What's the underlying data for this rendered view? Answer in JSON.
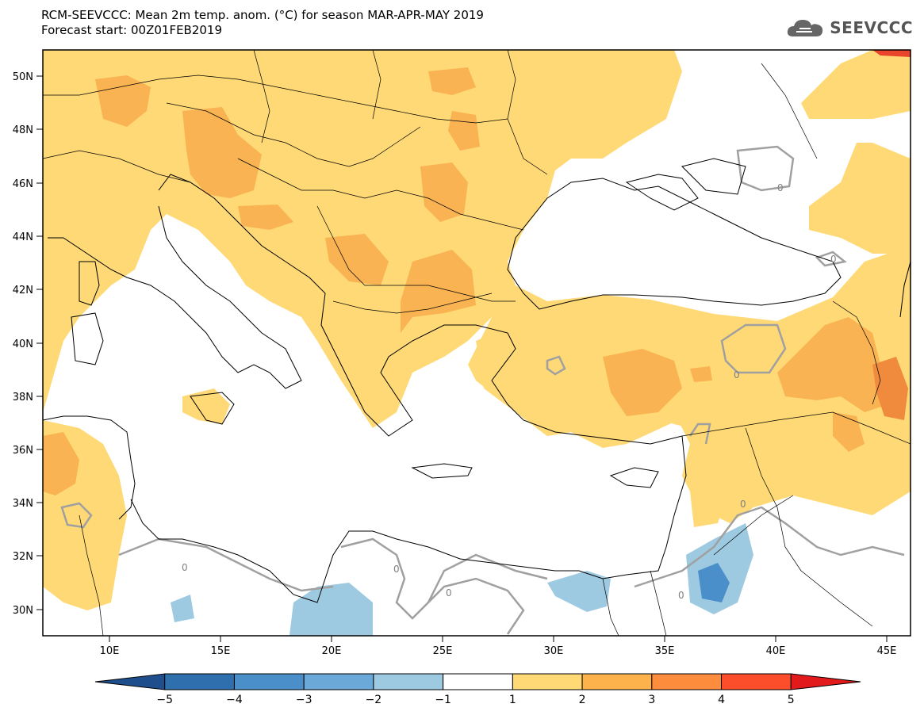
{
  "header": {
    "title_line1": "RCM-SEEVCCC: Mean 2m temp. anom. (°C) for season MAR-APR-MAY 2019",
    "title_line2": "Forecast start: 00Z01FEB2019",
    "logo_text": "SEEVCCC"
  },
  "map": {
    "lat_labels": [
      "50N",
      "48N",
      "46N",
      "44N",
      "42N",
      "40N",
      "38N",
      "36N",
      "34N",
      "32N",
      "30N"
    ],
    "lon_labels": [
      "10E",
      "15E",
      "20E",
      "25E",
      "30E",
      "35E",
      "40E",
      "45E"
    ],
    "contour_labels": [
      "0",
      "0",
      "0",
      "0",
      "0",
      "0",
      "0",
      "0"
    ]
  },
  "colorbar": {
    "tick_labels": [
      "−5",
      "−4",
      "−3",
      "−2",
      "−1",
      "1",
      "2",
      "3",
      "4",
      "5"
    ],
    "colors": [
      "#1f4e8c",
      "#2f6fad",
      "#4a8fc9",
      "#6aa9d8",
      "#9ecae1",
      "#ffffff",
      "#fed976",
      "#feb24c",
      "#fd8d3c",
      "#fc4e2a",
      "#e31a1c"
    ]
  },
  "colors": {
    "anom_1_2": "#fed976",
    "anom_2_3": "#f9b352",
    "anom_3_4": "#f08a3c",
    "anom_4_5": "#e8452a",
    "anom_m1_m2": "#9ecae1",
    "anom_m2_m3": "#4a8fc9",
    "zero_contour": "#a0a0a0",
    "coastline": "#000000"
  }
}
